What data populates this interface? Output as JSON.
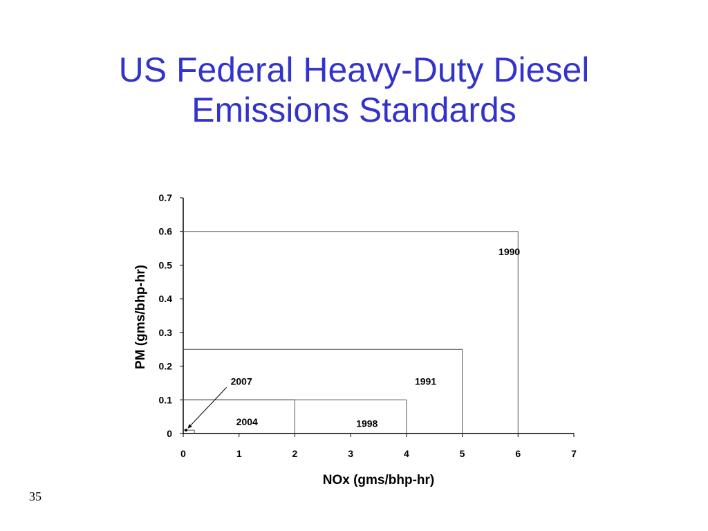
{
  "slide": {
    "title_line1": "US Federal Heavy-Duty Diesel",
    "title_line2": "Emissions Standards",
    "page_number": "35"
  },
  "colors": {
    "title": "#3333cc",
    "axis": "#000000",
    "limit_lines": "#555555"
  },
  "chart_data": {
    "type": "line",
    "title": "",
    "xlabel": "NOx (gms/bhp-hr)",
    "ylabel": "PM (gms/bhp-hr)",
    "xlim": [
      0,
      7
    ],
    "ylim": [
      0,
      0.7
    ],
    "xticks": [
      "0",
      "1",
      "2",
      "3",
      "4",
      "5",
      "6",
      "7"
    ],
    "yticks": [
      "0",
      "0.1",
      "0.2",
      "0.3",
      "0.4",
      "0.5",
      "0.6",
      "0.7"
    ],
    "grid": false,
    "legend": "none",
    "series": [
      {
        "name": "1990",
        "nox_limit": 6.0,
        "pm_limit": 0.6
      },
      {
        "name": "1991",
        "nox_limit": 5.0,
        "pm_limit": 0.25
      },
      {
        "name": "1998",
        "nox_limit": 4.0,
        "pm_limit": 0.1
      },
      {
        "name": "2004",
        "nox_limit": 2.0,
        "pm_limit": 0.1
      },
      {
        "name": "2007",
        "nox_limit": 0.2,
        "pm_limit": 0.01
      }
    ],
    "annotations": [
      {
        "text": "1990",
        "x": 5.65,
        "y": 0.53
      },
      {
        "text": "1991",
        "x": 4.15,
        "y": 0.145
      },
      {
        "text": "1998",
        "x": 3.1,
        "y": 0.02
      },
      {
        "text": "2004",
        "x": 0.95,
        "y": 0.025
      },
      {
        "text": "2007",
        "x": 0.85,
        "y": 0.145,
        "arrow_to": [
          0.05,
          0.01
        ]
      }
    ]
  }
}
